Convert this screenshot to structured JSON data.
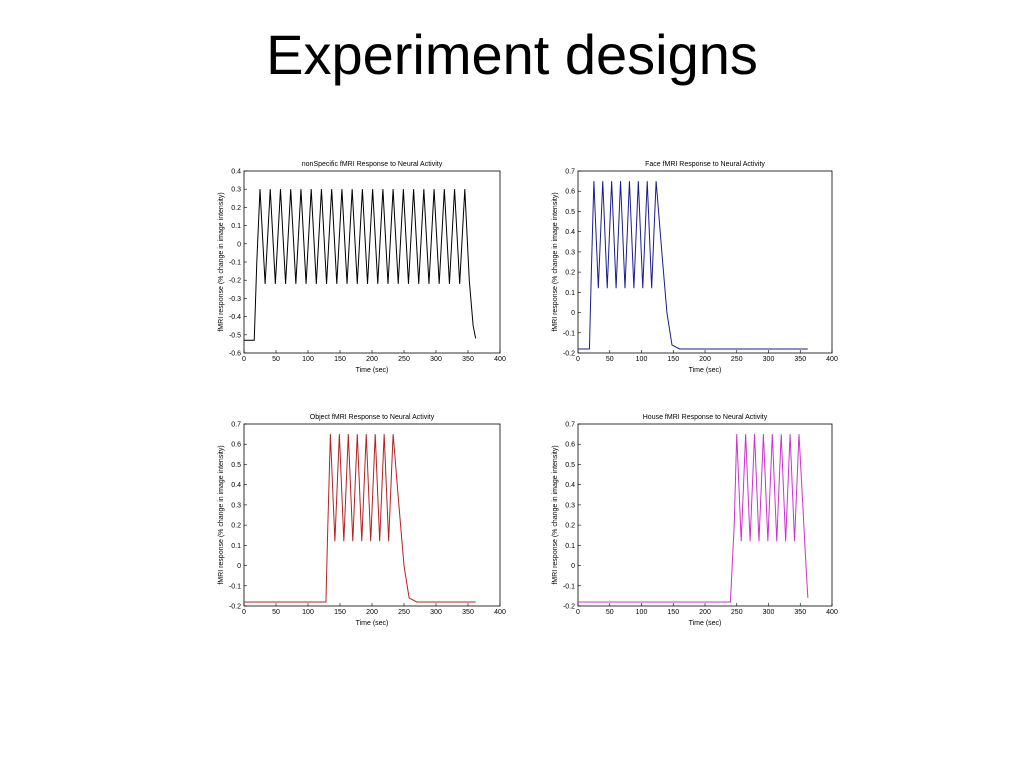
{
  "title": "Experiment designs",
  "chart_data": [
    {
      "type": "line",
      "title": "nonSpecific fMRI Response to Neural Activity",
      "xlabel": "Time (sec)",
      "ylabel": "fMRI response (% change in image intensity)",
      "xlim": [
        0,
        400
      ],
      "xticks": [
        0,
        50,
        100,
        150,
        200,
        250,
        300,
        350,
        400
      ],
      "ylim": [
        -0.6,
        0.4
      ],
      "yticks": [
        -0.6,
        -0.5,
        -0.4,
        -0.3,
        -0.2,
        -0.1,
        0,
        0.1,
        0.2,
        0.3,
        0.4
      ],
      "x": [
        0,
        16,
        20,
        25,
        33,
        41,
        49,
        57,
        65,
        73,
        81,
        89,
        97,
        105,
        113,
        121,
        129,
        137,
        145,
        153,
        161,
        169,
        177,
        185,
        193,
        201,
        209,
        217,
        225,
        233,
        241,
        249,
        257,
        265,
        273,
        281,
        289,
        297,
        305,
        313,
        321,
        329,
        337,
        345,
        352,
        358,
        362
      ],
      "series": [
        {
          "color": "#000000",
          "values": [
            -0.53,
            -0.53,
            -0.1,
            0.3,
            -0.22,
            0.3,
            -0.22,
            0.3,
            -0.22,
            0.3,
            -0.22,
            0.3,
            -0.22,
            0.3,
            -0.22,
            0.3,
            -0.22,
            0.3,
            -0.22,
            0.3,
            -0.22,
            0.3,
            -0.22,
            0.3,
            -0.22,
            0.3,
            -0.22,
            0.3,
            -0.22,
            0.3,
            -0.22,
            0.3,
            -0.22,
            0.3,
            -0.22,
            0.3,
            -0.22,
            0.3,
            -0.22,
            0.3,
            -0.22,
            0.3,
            -0.22,
            0.3,
            -0.2,
            -0.45,
            -0.52
          ]
        }
      ]
    },
    {
      "type": "line",
      "title": "Face fMRI Response to Neural Activity",
      "xlabel": "Time (sec)",
      "ylabel": "fMRI response (% change in image intensity)",
      "xlim": [
        0,
        400
      ],
      "xticks": [
        0,
        50,
        100,
        150,
        200,
        250,
        300,
        350,
        400
      ],
      "ylim": [
        -0.2,
        0.7
      ],
      "yticks": [
        -0.2,
        -0.1,
        0,
        0.1,
        0.2,
        0.3,
        0.4,
        0.5,
        0.6,
        0.7
      ],
      "x": [
        0,
        18,
        21,
        25,
        32,
        39,
        46,
        53,
        60,
        67,
        74,
        81,
        88,
        95,
        102,
        109,
        116,
        123,
        132,
        140,
        148,
        160,
        362
      ],
      "series": [
        {
          "color": "#1c1c8c",
          "values": [
            -0.18,
            -0.18,
            0.2,
            0.65,
            0.12,
            0.65,
            0.12,
            0.65,
            0.12,
            0.65,
            0.12,
            0.65,
            0.12,
            0.65,
            0.12,
            0.65,
            0.12,
            0.65,
            0.3,
            0.0,
            -0.16,
            -0.18,
            -0.18
          ]
        }
      ]
    },
    {
      "type": "line",
      "title": "Object fMRI Response to Neural Activity",
      "xlabel": "Time (sec)",
      "ylabel": "fMRI response (% change in image intensity)",
      "xlim": [
        0,
        400
      ],
      "xticks": [
        0,
        50,
        100,
        150,
        200,
        250,
        300,
        350,
        400
      ],
      "ylim": [
        -0.2,
        0.7
      ],
      "yticks": [
        -0.2,
        -0.1,
        0,
        0.1,
        0.2,
        0.3,
        0.4,
        0.5,
        0.6,
        0.7
      ],
      "x": [
        0,
        128,
        131,
        135,
        142,
        149,
        156,
        163,
        170,
        177,
        184,
        191,
        198,
        205,
        212,
        219,
        226,
        233,
        242,
        250,
        258,
        270,
        362
      ],
      "series": [
        {
          "color": "#b22222",
          "values": [
            -0.18,
            -0.18,
            0.2,
            0.65,
            0.12,
            0.65,
            0.12,
            0.65,
            0.12,
            0.65,
            0.12,
            0.65,
            0.12,
            0.65,
            0.12,
            0.65,
            0.12,
            0.65,
            0.3,
            0.0,
            -0.16,
            -0.18,
            -0.18
          ]
        }
      ]
    },
    {
      "type": "line",
      "title": "House fMRI Response to Neural Activity",
      "xlabel": "Time (sec)",
      "ylabel": "fMRI response (% change in image intensity)",
      "xlim": [
        0,
        400
      ],
      "xticks": [
        0,
        50,
        100,
        150,
        200,
        250,
        300,
        350,
        400
      ],
      "ylim": [
        -0.2,
        0.7
      ],
      "yticks": [
        -0.2,
        -0.1,
        0,
        0.1,
        0.2,
        0.3,
        0.4,
        0.5,
        0.6,
        0.7
      ],
      "x": [
        0,
        240,
        246,
        250,
        257,
        264,
        271,
        278,
        285,
        292,
        299,
        306,
        313,
        320,
        327,
        334,
        341,
        348,
        354,
        359,
        362
      ],
      "series": [
        {
          "color": "#cc33cc",
          "values": [
            -0.18,
            -0.18,
            0.2,
            0.65,
            0.12,
            0.65,
            0.12,
            0.65,
            0.12,
            0.65,
            0.12,
            0.65,
            0.12,
            0.65,
            0.12,
            0.65,
            0.12,
            0.65,
            0.3,
            0.0,
            -0.16
          ]
        }
      ]
    }
  ]
}
